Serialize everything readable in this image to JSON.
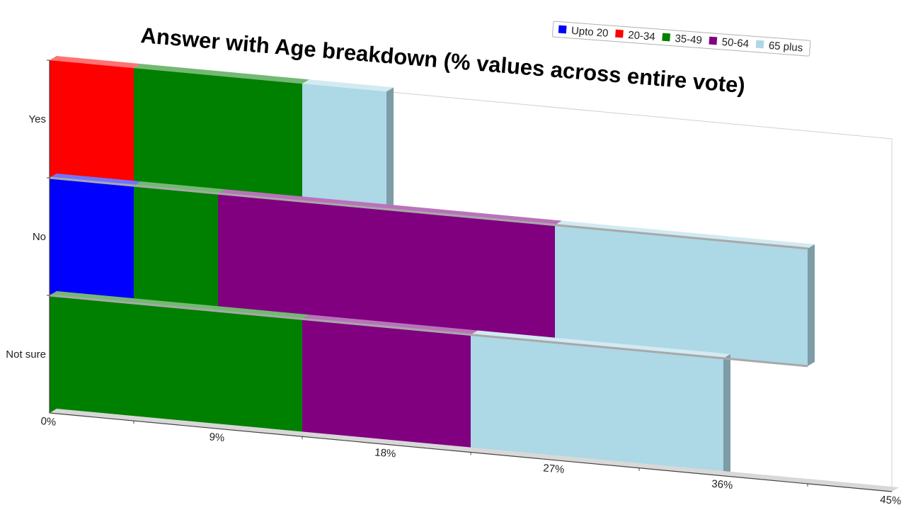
{
  "chart_data": {
    "type": "bar",
    "orientation": "horizontal",
    "stacked": true,
    "title": "Answer with Age breakdown (% values across entire vote)",
    "categories": [
      "Yes",
      "No",
      "Not sure"
    ],
    "xlim": [
      0,
      45
    ],
    "x_ticks": [
      "0%",
      "9%",
      "18%",
      "27%",
      "36%",
      "45%"
    ],
    "legend_position": "top-right",
    "series": [
      {
        "name": "Upto 20",
        "color": "#0000ff",
        "values": [
          0,
          4.5,
          0
        ]
      },
      {
        "name": "20-34",
        "color": "#ff0000",
        "values": [
          4.5,
          0,
          0
        ]
      },
      {
        "name": "35-49",
        "color": "#008000",
        "values": [
          9,
          4.5,
          13.5
        ]
      },
      {
        "name": "50-64",
        "color": "#800080",
        "values": [
          0,
          18,
          9
        ]
      },
      {
        "name": "65 plus",
        "color": "#add8e6",
        "values": [
          4.5,
          13.5,
          13.5
        ]
      }
    ]
  }
}
